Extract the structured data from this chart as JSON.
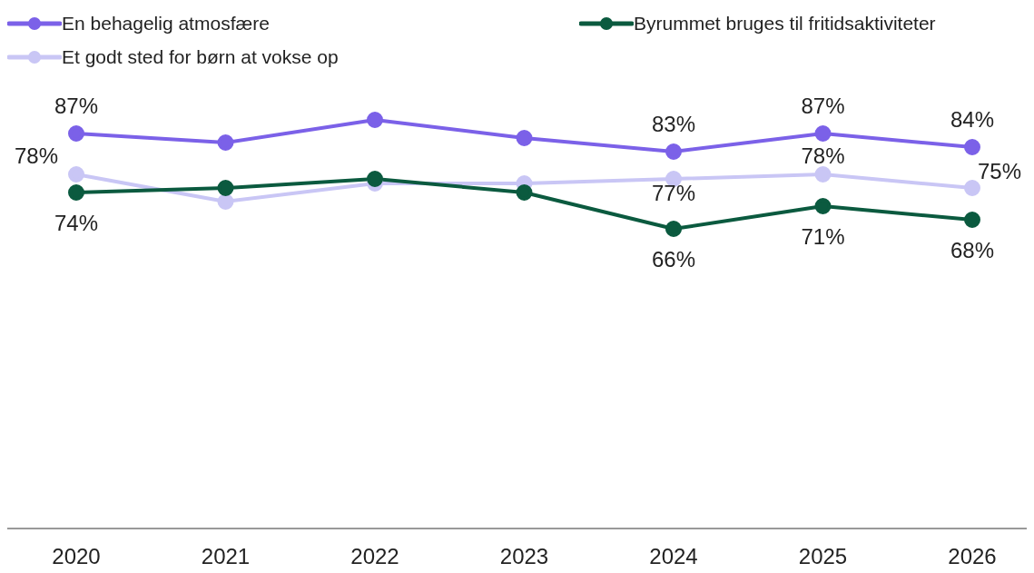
{
  "chart_data": {
    "type": "line",
    "categories": [
      "2020",
      "2021",
      "2022",
      "2023",
      "2024",
      "2025",
      "2026"
    ],
    "series": [
      {
        "name": "En behagelig atmosfære",
        "color": "#7b61e8",
        "values": [
          87,
          85,
          90,
          86,
          83,
          87,
          84
        ],
        "value_labels": [
          "87%",
          null,
          null,
          null,
          "83%",
          "87%",
          "84%"
        ]
      },
      {
        "name": "Byrummet bruges til fritidsaktiviteter",
        "color": "#0b5a3f",
        "values": [
          74,
          75,
          77,
          74,
          66,
          71,
          68
        ],
        "value_labels": [
          "74%",
          null,
          null,
          null,
          "66%",
          "71%",
          "68%"
        ]
      },
      {
        "name": "Et godt sted for børn at vokse op",
        "color": "#c9c6f5",
        "values": [
          78,
          72,
          76,
          76,
          77,
          78,
          75
        ],
        "value_labels": [
          "78%",
          null,
          null,
          null,
          "77%",
          "78%",
          "75%"
        ]
      }
    ],
    "tick_labels": "x",
    "grid": false,
    "legend": "top",
    "marker": "circle",
    "line_style": "solid"
  }
}
